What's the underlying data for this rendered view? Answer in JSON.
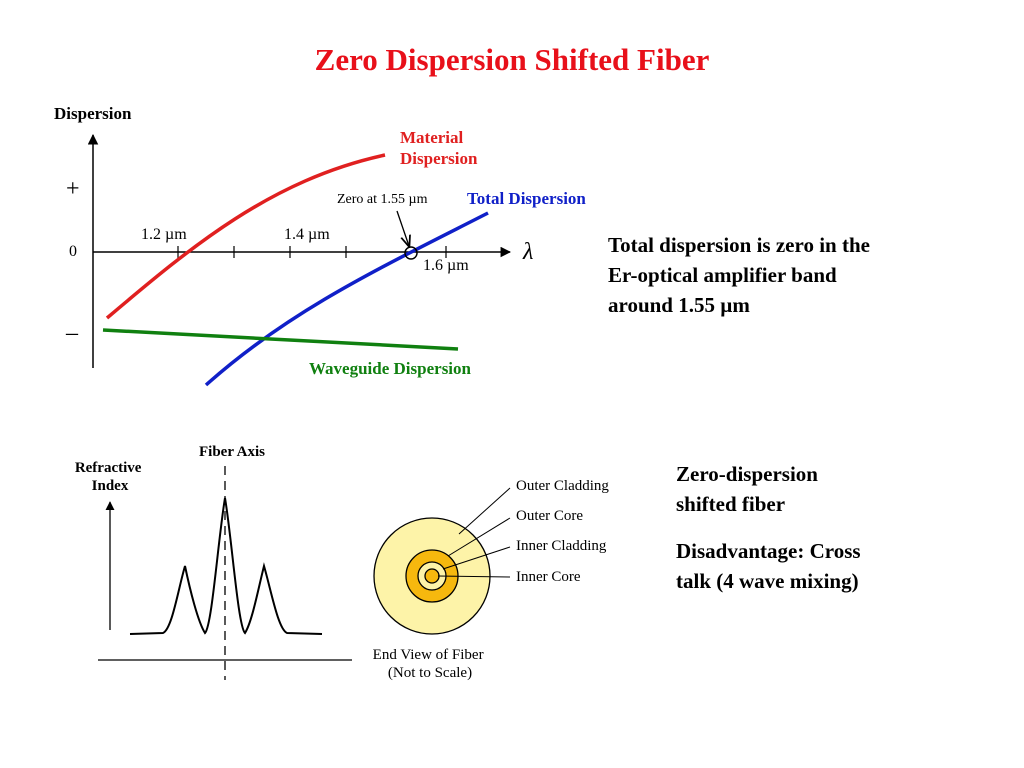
{
  "slide": {
    "title": "Zero Dispersion Shifted Fiber"
  },
  "colors": {
    "title": "#e8101a",
    "material": "#e02020",
    "total": "#1020c8",
    "waveguide": "#108010",
    "cladding_outer": "#fdf3a8",
    "core_outer": "#f6b80e"
  },
  "top_diagram": {
    "y_axis_label": "Dispersion",
    "plus_sign": "+",
    "minus_sign": "–",
    "zero_label": "0",
    "x_axis_symbol": "λ",
    "tick_labels": [
      "1.2 µm",
      "1.4 µm",
      "1.6 µm"
    ],
    "zero_callout": "Zero at 1.55 µm",
    "curves": {
      "material_line1": "Material",
      "material_line2": "Dispersion",
      "total": "Total Dispersion",
      "waveguide": "Waveguide Dispersion"
    }
  },
  "top_note": {
    "line1": "Total dispersion is zero in the",
    "line2": "Er-optical amplifier band",
    "line3": "around 1.55 µm"
  },
  "profile_diagram": {
    "y_label_line1": "Refractive",
    "y_label_line2": "Index",
    "axis_label": "Fiber Axis"
  },
  "end_view": {
    "labels": [
      "Outer Cladding",
      "Outer Core",
      "Inner Cladding",
      "Inner Core"
    ],
    "caption_line1": "End View of Fiber",
    "caption_line2": "(Not to Scale)"
  },
  "bottom_note": {
    "line1": "Zero-dispersion",
    "line2": "shifted fiber",
    "line3": "Disadvantage: Cross",
    "line4": "talk (4 wave mixing)"
  }
}
